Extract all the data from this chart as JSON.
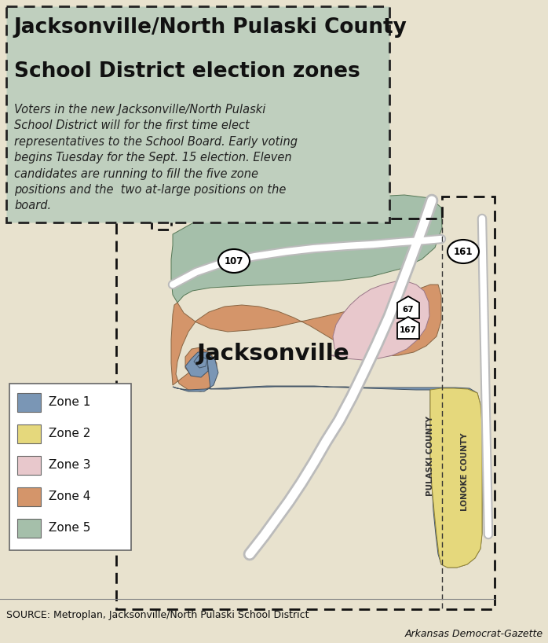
{
  "title_line1": "Jacksonville/North Pulaski County",
  "title_line2": "School District election zones",
  "subtitle": "Voters in the new Jacksonville/North Pulaski\nSchool District will for the first time elect\nrepresentatives to the School Board. Early voting\nbegins Tuesday for the Sept. 15 election. Eleven\ncandidates are running to fill the five zone\npositions and the  two at-large positions on the\nboard.",
  "source": "SOURCE: Metroplan, Jacksonville/North Pulaski School District",
  "credit": "Arkansas Democrat-Gazette",
  "bg_color": "#e8e2ce",
  "map_bg_color": "#ddd6be",
  "title_box_color": "#bfcfbe",
  "zone_colors": {
    "zone1": "#7a96b5",
    "zone2": "#e5d87c",
    "zone3": "#e8c8cc",
    "zone4": "#d4956a",
    "zone5": "#a5bfaa"
  },
  "road_color": "#ffffff",
  "road_edge_color": "#bbbbbb",
  "district_dash_color": "#111111",
  "label_jacksonville": "Jacksonville",
  "label_pulaski": "PULASKI COUNTY",
  "label_lonoke": "LONOKE COUNTY",
  "route_107": "107",
  "route_67": "67",
  "route_167": "167",
  "route_161": "161"
}
